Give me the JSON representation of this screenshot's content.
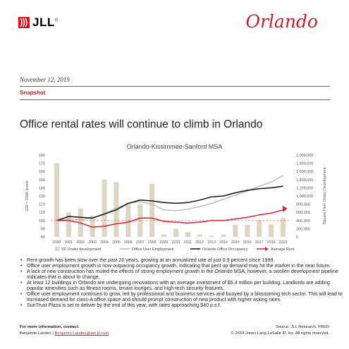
{
  "header": {
    "logo_text": "JLL",
    "logo_mark": "©",
    "city": "Orlando"
  },
  "report": {
    "date": "November 12, 2019",
    "section": "Snapshot",
    "headline": "Office rental rates will continue to climb in Orlando"
  },
  "chart_data": {
    "type": "bar",
    "title": "Orlando-Kissimmee-Sanford MSA",
    "categories": [
      "2000",
      "2001",
      "2002",
      "2003",
      "2004",
      "2005",
      "2006",
      "2007",
      "2008",
      "2009",
      "2010",
      "2011",
      "2012",
      "2013",
      "2014",
      "2015",
      "2016",
      "2017",
      "2018",
      "2019"
    ],
    "ylabel_left": "100 = 2000 levels",
    "ylabel_right": "Square Feet Under Development",
    "yleft_ticks": [
      "180",
      "170",
      "160",
      "150",
      "140",
      "130",
      "120",
      "110",
      "100",
      "90",
      "80"
    ],
    "yright_ticks": [
      "2,000,000",
      "1,800,000",
      "1,600,000",
      "1,400,000",
      "1,200,000",
      "1,000,000",
      "800,000",
      "600,000",
      "400,000",
      "200,000",
      "0"
    ],
    "ylim_left": [
      80,
      180
    ],
    "ylim_right": [
      0,
      2000000
    ],
    "baseline_dashed": 100,
    "series": [
      {
        "name": "SF Under development",
        "type": "bar",
        "axis": "right",
        "color": "#ddd6c3",
        "values": [
          1800000,
          600000,
          700000,
          520000,
          1400000,
          1340000,
          840000,
          800000,
          1300000,
          60000,
          200000,
          120000,
          60000,
          30000,
          60000,
          300000,
          300000,
          420000,
          310000,
          460000
        ]
      },
      {
        "name": "Office User Employment",
        "type": "line",
        "axis": "left",
        "color": "#b3b3b3",
        "values": [
          100,
          102,
          101,
          103,
          108,
          115,
          121,
          123,
          120,
          113,
          112,
          114,
          117,
          121,
          126,
          131,
          136,
          142,
          147,
          155
        ]
      },
      {
        "name": "Orlando Office Occupancy",
        "type": "line",
        "axis": "left",
        "color": "#111111",
        "values": [
          100,
          105,
          104,
          103,
          108,
          113,
          121,
          125,
          124,
          122,
          121,
          122,
          125,
          129,
          130,
          134,
          137,
          139,
          140,
          142
        ]
      },
      {
        "name": "Average Rent",
        "type": "line",
        "axis": "left",
        "color": "#d02432",
        "values": [
          100,
          100,
          97,
          92,
          93,
          96,
          98,
          103,
          103,
          99,
          98,
          97,
          98,
          100,
          100,
          102,
          104,
          107,
          109,
          113
        ]
      }
    ]
  },
  "bullets": [
    "Rent growth has been slow over the past 20 years, growing at an annualized rate of just 0.9 percent since 1999.",
    "Office user employment growth is now outpacing occupancy growth, indicating that pent up demand may hit the market in the near future.",
    "A lack of new construction has muted the effects of strong employment growth in the Orlando MSA, however, a swollen development pipeline indicates that is about to change.",
    "At least 12 buildings in Orlando are undergoing renovations with an average investment of $5.4 million per building. Landlords are adding popular amenities such as fitness rooms, tenant lounges, and high-tech security features.",
    "Office user employment continues to grow, led by professional and business services and buoyed by a blossoming tech sector. This will lead to increased demand for class-A office space and should prompt construction of new product with higher asking rates.",
    "SunTrust Plaza is set to deliver by the end of this year, with rates approaching $40 p.s.f."
  ],
  "footer": {
    "more_info": "For more information, contact:",
    "contact_name": "Benjamin Landes",
    "separator": " | ",
    "contact_email": "Benjamin.Landes@am.jll.com",
    "source": "Source: JLL Research, FRED",
    "copyright": "© 2019 Jones Lang LaSalle IP, Inc. All rights reserved."
  }
}
